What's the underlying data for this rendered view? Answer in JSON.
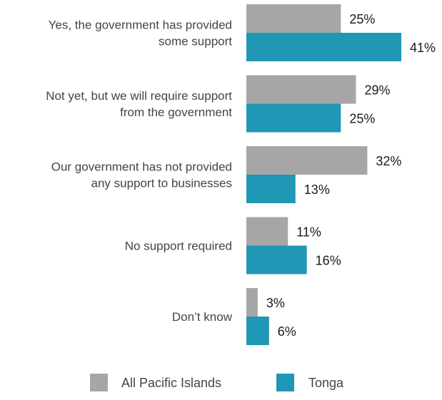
{
  "chart_data": {
    "type": "bar",
    "orientation": "horizontal",
    "categories": [
      [
        "Yes, the government has provided",
        "some support"
      ],
      [
        "Not yet, but we will require support",
        "from the government"
      ],
      [
        "Our government has not provided",
        "any support to businesses"
      ],
      [
        "No support required"
      ],
      [
        "Don’t know"
      ]
    ],
    "series": [
      {
        "name": "All Pacific Islands",
        "color": "#a6a6a6",
        "values": [
          25,
          29,
          32,
          11,
          3
        ]
      },
      {
        "name": "Tonga",
        "color": "#1f97b5",
        "values": [
          41,
          25,
          13,
          16,
          6
        ]
      }
    ],
    "value_suffix": "%",
    "xlim": [
      0,
      41
    ],
    "legend": "bottom",
    "grid": false,
    "title": "",
    "xlabel": "",
    "ylabel": ""
  }
}
